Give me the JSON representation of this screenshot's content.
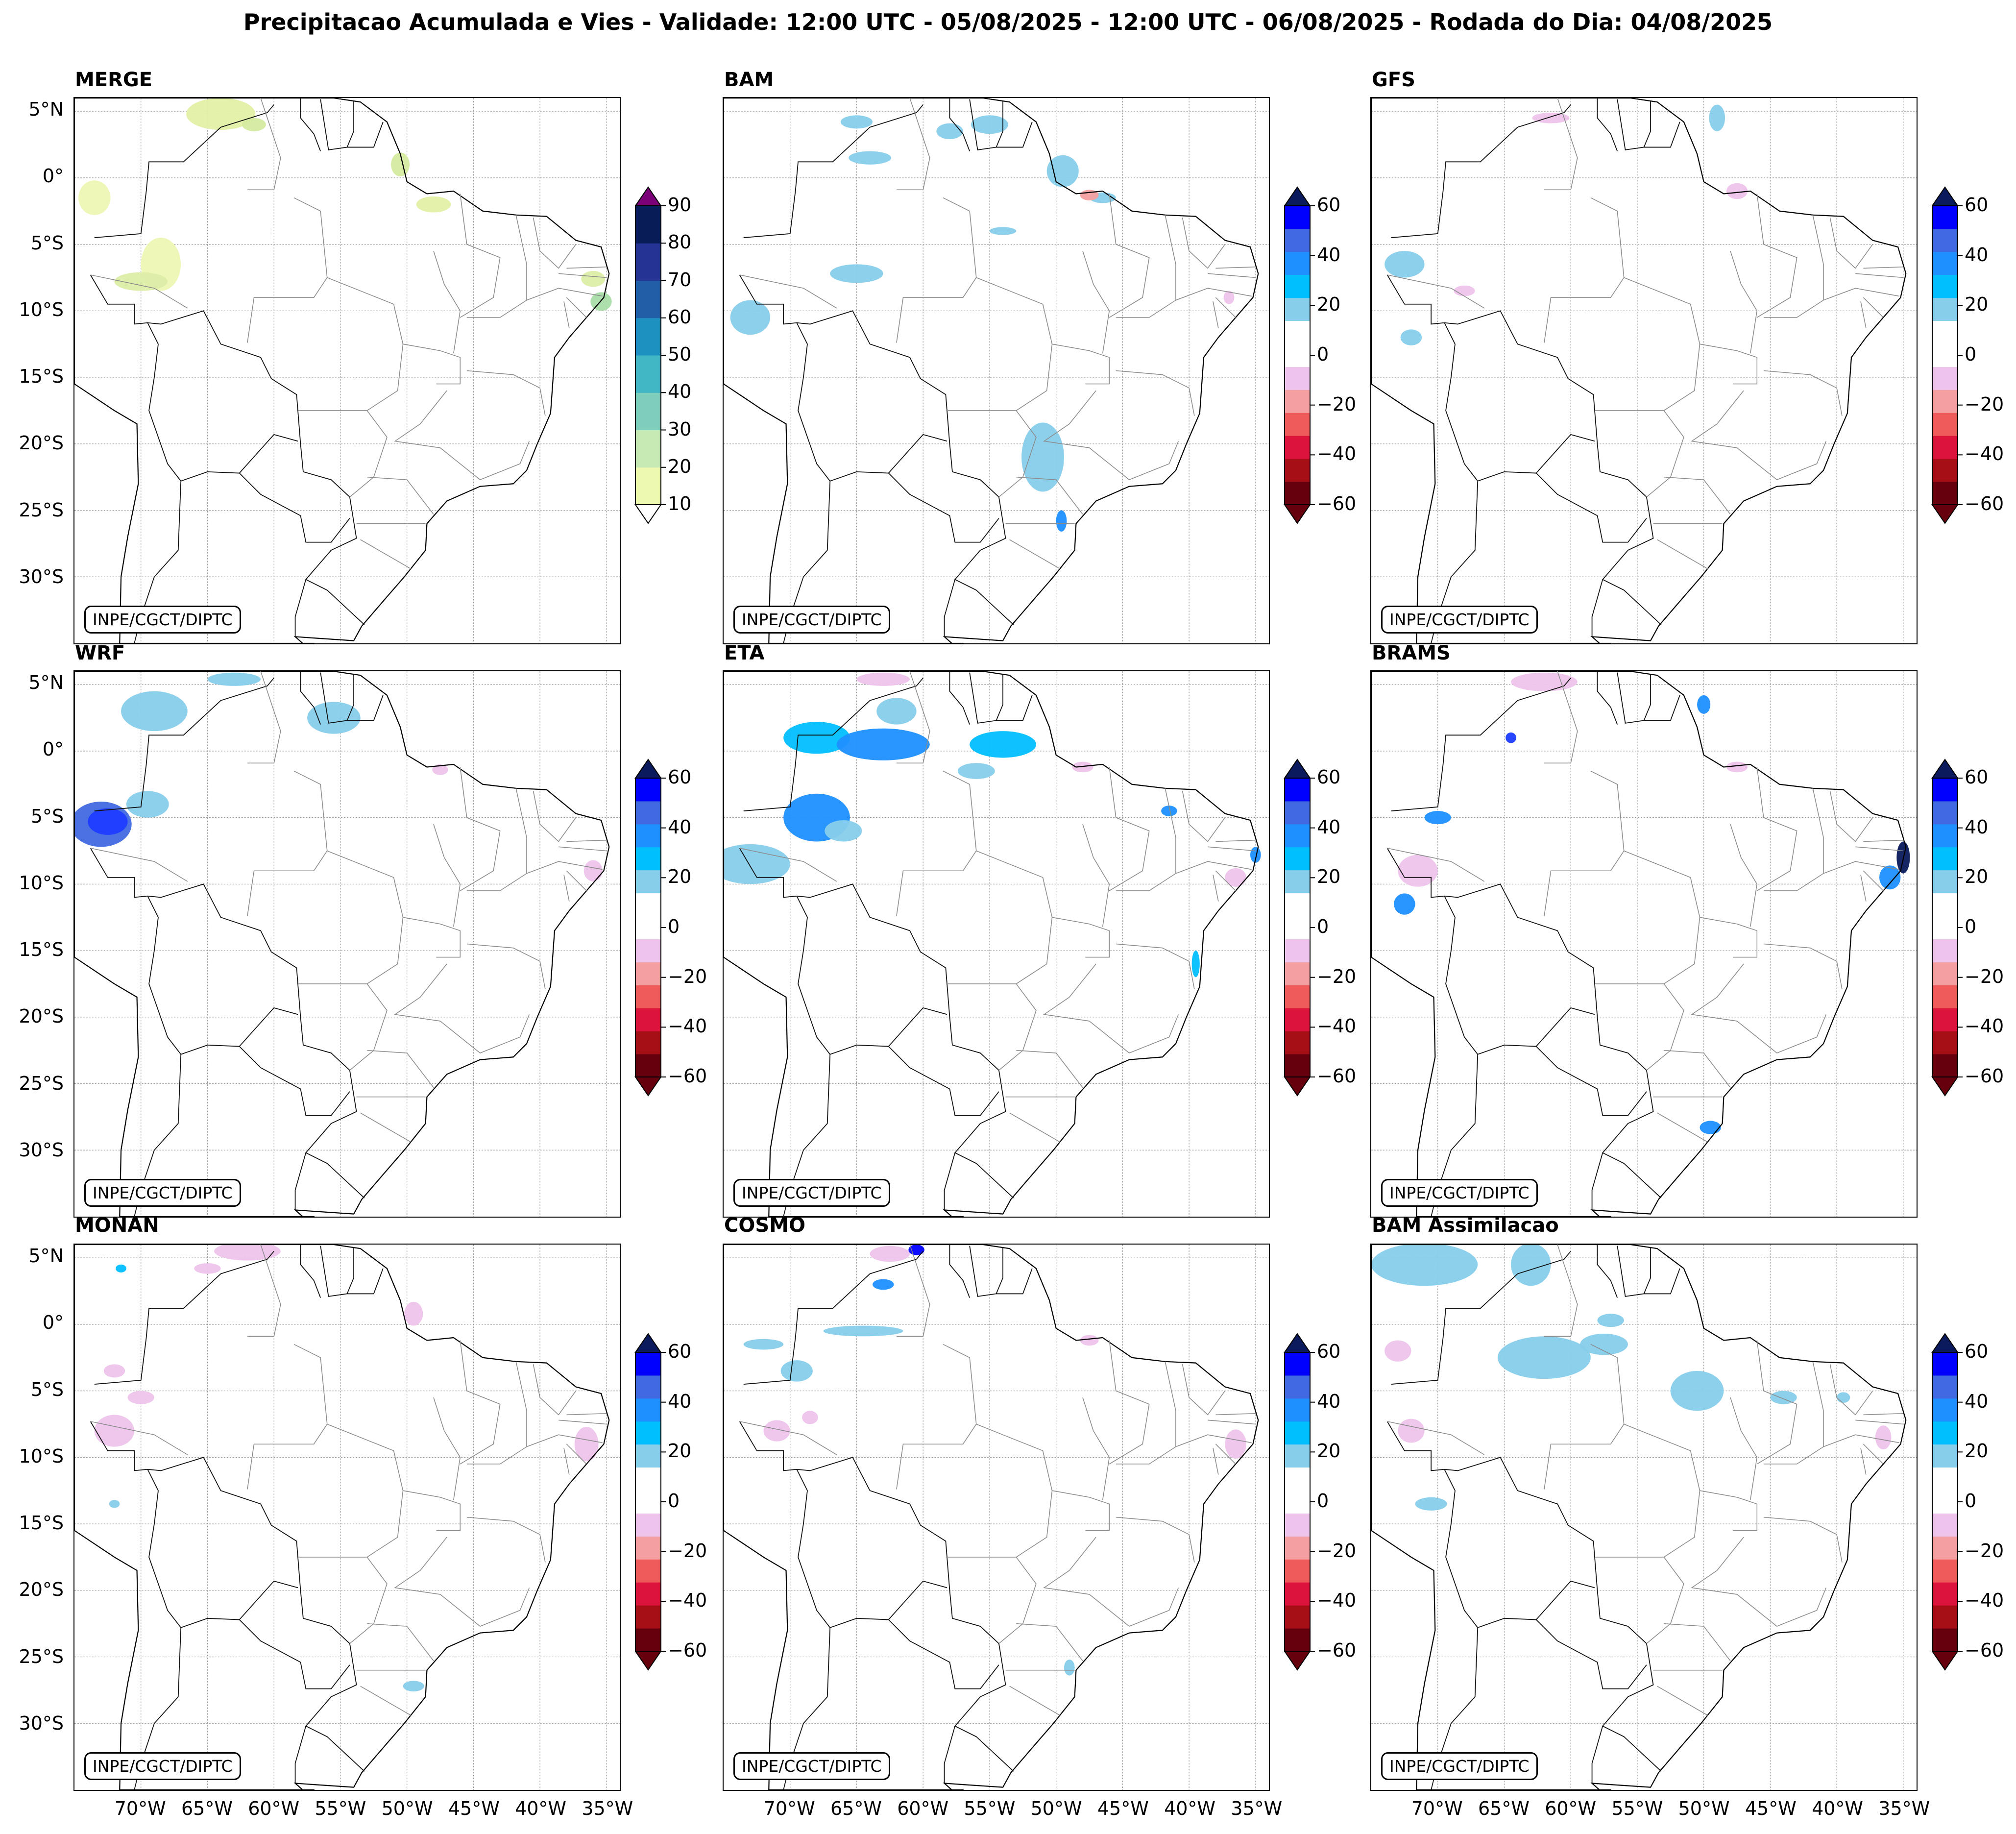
{
  "figure": {
    "title": "Precipitacao Acumulada e Vies - Validade: 12:00 UTC - 05/08/2025 - 12:00 UTC - 06/08/2025 - Rodada do Dia: 04/08/2025",
    "credit": "INPE/CGCT/DIPTC"
  },
  "axes": {
    "lat_ticks": [
      "5°N",
      "0°",
      "5°S",
      "10°S",
      "15°S",
      "20°S",
      "25°S",
      "30°S"
    ],
    "lon_ticks": [
      "70°W",
      "65°W",
      "60°W",
      "55°W",
      "50°W",
      "45°W",
      "40°W",
      "35°W"
    ],
    "lat_values": [
      5,
      0,
      -5,
      -10,
      -15,
      -20,
      -25,
      -30
    ],
    "lon_values": [
      -70,
      -65,
      -60,
      -55,
      -50,
      -45,
      -40,
      -35
    ],
    "extent": {
      "lon_min": -75,
      "lon_max": -34,
      "lat_min": -35,
      "lat_max": 6
    }
  },
  "panels": [
    {
      "name": "MERGE",
      "kind": "precip"
    },
    {
      "name": "BAM",
      "kind": "bias"
    },
    {
      "name": "GFS",
      "kind": "bias"
    },
    {
      "name": "WRF",
      "kind": "bias"
    },
    {
      "name": "ETA",
      "kind": "bias"
    },
    {
      "name": "BRAMS",
      "kind": "bias"
    },
    {
      "name": "MONAN",
      "kind": "bias"
    },
    {
      "name": "COSMO",
      "kind": "bias"
    },
    {
      "name": "BAM Assimilacao",
      "kind": "bias"
    }
  ],
  "colorbars": {
    "precip": {
      "labels": [
        "90",
        "80",
        "70",
        "60",
        "50",
        "40",
        "30",
        "20",
        "10"
      ],
      "colors": [
        "#edf8b1",
        "#c7e9b4",
        "#7fcdbb",
        "#41b6c4",
        "#1d91c0",
        "#225ea8",
        "#253494",
        "#081d58"
      ],
      "extend_top": "#7a0177",
      "extend_bottom": "#ffffff"
    },
    "bias": {
      "labels": [
        "60",
        "40",
        "20",
        "0",
        "−20",
        "−40",
        "−60"
      ],
      "colors": [
        "#67000d",
        "#a50f15",
        "#dc143c",
        "#ef5a5a",
        "#f4a0a0",
        "#eec4ec",
        "#ffffff",
        "#ffffff",
        "#87ceeb",
        "#00bfff",
        "#1e90ff",
        "#4169e1",
        "#0000ff"
      ],
      "extend_top": "#0a1a5c",
      "extend_bottom": "#67000d"
    }
  }
}
